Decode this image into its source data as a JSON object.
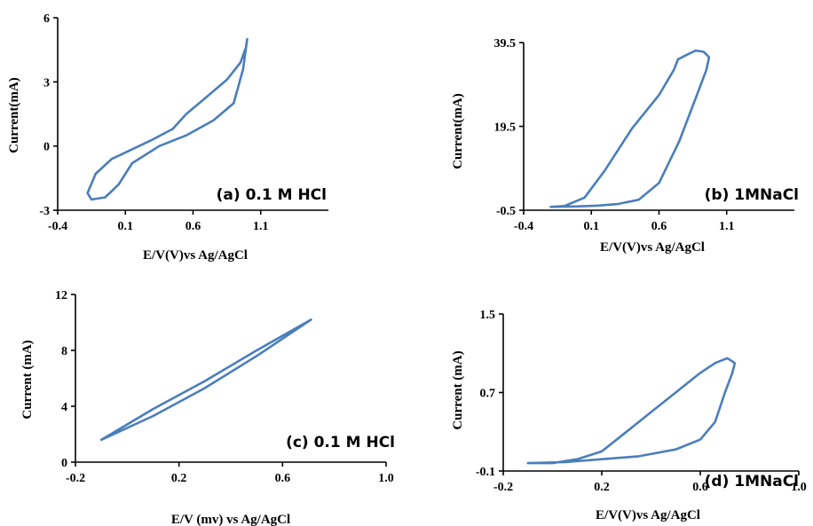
{
  "colors": {
    "series": "#4a7ebb"
  },
  "chart_data": [
    {
      "type": "line",
      "label": "(a) 0.1 M HCl",
      "xlabel": "E/V(V)vs Ag/AgCl",
      "ylabel": "Current(mA)",
      "xlim": [
        -0.4,
        1.6
      ],
      "ylim": [
        -3,
        6
      ],
      "xticks": [
        "-0.4",
        "0.1",
        "0.6",
        "1.1"
      ],
      "yticks": [
        "-3",
        "0",
        "3",
        "6"
      ],
      "series": [
        {
          "x": [
            0.45,
            0.55,
            0.7,
            0.85,
            0.95,
            0.99,
            1.0,
            0.97,
            0.9,
            0.75,
            0.55,
            0.35,
            0.15,
            0.05,
            -0.05,
            -0.15,
            -0.18,
            -0.12,
            0.0,
            0.15,
            0.3,
            0.45
          ],
          "y": [
            0.8,
            1.5,
            2.3,
            3.1,
            3.9,
            4.6,
            5.0,
            3.6,
            2.0,
            1.2,
            0.5,
            0.0,
            -0.8,
            -1.8,
            -2.4,
            -2.5,
            -2.2,
            -1.3,
            -0.6,
            -0.15,
            0.3,
            0.8
          ]
        }
      ]
    },
    {
      "type": "line",
      "label": "(b) 1MNaCl",
      "xlabel": "E/V(V)vs Ag/AgCl",
      "ylabel": "Current(mA)",
      "xlim": [
        -0.4,
        1.6
      ],
      "ylim": [
        -0.5,
        39.5
      ],
      "xticks": [
        "-0.4",
        "0.1",
        "0.6",
        "1.1"
      ],
      "yticks": [
        "-0.5",
        "19.5",
        "39.5"
      ],
      "series": [
        {
          "x": [
            -0.2,
            0.0,
            0.15,
            0.3,
            0.45,
            0.6,
            0.75,
            0.88,
            0.95,
            0.97,
            0.93,
            0.87,
            0.8,
            0.74,
            0.71,
            0.6,
            0.4,
            0.2,
            0.05,
            -0.1,
            -0.2
          ],
          "y": [
            0.3,
            0.4,
            0.6,
            1.0,
            2.0,
            6.0,
            16.0,
            27.0,
            33.0,
            36.0,
            37.3,
            37.6,
            36.5,
            35.5,
            33.0,
            27.0,
            19.0,
            9.0,
            2.5,
            0.5,
            0.3
          ]
        }
      ]
    },
    {
      "type": "line",
      "label": "(c) 0.1 M HCl",
      "xlabel": "E/V (mv) vs Ag/AgCl",
      "ylabel": "Current (mA)",
      "xlim": [
        -0.2,
        1.0
      ],
      "ylim": [
        0,
        12
      ],
      "xticks": [
        "-0.2",
        "0.2",
        "0.6",
        "1.0"
      ],
      "yticks": [
        "0",
        "4",
        "8",
        "12"
      ],
      "series": [
        {
          "x": [
            -0.1,
            0.1,
            0.3,
            0.5,
            0.71,
            0.5,
            0.3,
            0.1,
            -0.1
          ],
          "y": [
            1.6,
            3.3,
            5.3,
            7.6,
            10.2,
            8.0,
            5.8,
            3.8,
            1.6
          ]
        }
      ]
    },
    {
      "type": "line",
      "label": "(d) 1MNaCl",
      "xlabel": "E/V(V)vs Ag/AgCl",
      "ylabel": "Current (mA)",
      "xlim": [
        -0.2,
        1.0
      ],
      "ylim": [
        -0.1,
        1.5
      ],
      "xticks": [
        "-0.2",
        "0.2",
        "0.6",
        "1.0"
      ],
      "yticks": [
        "-0.1",
        "0.7",
        "1.5"
      ],
      "series": [
        {
          "x": [
            -0.1,
            0.05,
            0.2,
            0.35,
            0.5,
            0.6,
            0.66,
            0.7,
            0.73,
            0.74,
            0.71,
            0.66,
            0.6,
            0.5,
            0.4,
            0.3,
            0.2,
            0.1,
            0.0,
            -0.1
          ],
          "y": [
            -0.02,
            -0.01,
            0.02,
            0.05,
            0.12,
            0.22,
            0.4,
            0.7,
            0.9,
            1.0,
            1.05,
            1.0,
            0.9,
            0.7,
            0.5,
            0.3,
            0.1,
            0.02,
            -0.02,
            -0.02
          ]
        }
      ]
    }
  ]
}
